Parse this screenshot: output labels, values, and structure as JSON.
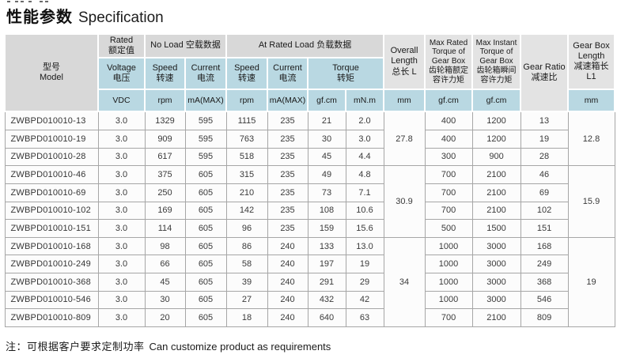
{
  "page": {
    "title_zh": "性能参数",
    "title_en": "Specification",
    "note_zh": "注：可根据客户要求定制功率",
    "note_en": "Can customize product as requirements"
  },
  "colors": {
    "header_gray": "#d8d8d8",
    "header_gray_light": "#e3e3e3",
    "header_blue": "#b9d8e2",
    "grid_line": "#a6a6a6",
    "cell_background": "#fcfcfc"
  },
  "table": {
    "header": {
      "model": "型号\nModel",
      "rated": "Rated\n额定值",
      "no_load": "No Load 空载数据",
      "at_rated_load": "At Rated Load 负载数据",
      "voltage": "Voltage\n电压",
      "speed": "Speed\n转速",
      "current": "Current\n电流",
      "torque": "Torque\n转矩",
      "overall_length": "Overall\nLength\n总长 L",
      "max_rated_torque": "Max Rated\nTorque of\nGear Box\n齿轮箱额定\n容许力矩",
      "max_instant_torque": "Max Instant\nTorque of\nGear Box\n齿轮箱瞬间\n容许力矩",
      "gear_ratio": "Gear Ratio\n减速比",
      "gear_box_length": "Gear Box\nLength\n减速箱长\nL1",
      "unit_vdc": "VDC",
      "unit_rpm": "rpm",
      "unit_ma": "mA(MAX)",
      "unit_gfcm": "gf.cm",
      "unit_mnm": "mN.m",
      "unit_mm": "mm"
    },
    "rows": [
      {
        "model": "ZWBPD010010-13",
        "voltage": "3.0",
        "no_load_speed": "1329",
        "no_load_current": "595",
        "rated_speed": "1115",
        "rated_current": "235",
        "torque_gfcm": "21",
        "torque_mnm": "2.0",
        "max_rated_torque": "400",
        "max_instant_torque": "1200",
        "gear_ratio": "13"
      },
      {
        "model": "ZWBPD010010-19",
        "voltage": "3.0",
        "no_load_speed": "909",
        "no_load_current": "595",
        "rated_speed": "763",
        "rated_current": "235",
        "torque_gfcm": "30",
        "torque_mnm": "3.0",
        "max_rated_torque": "400",
        "max_instant_torque": "1200",
        "gear_ratio": "19"
      },
      {
        "model": "ZWBPD010010-28",
        "voltage": "3.0",
        "no_load_speed": "617",
        "no_load_current": "595",
        "rated_speed": "518",
        "rated_current": "235",
        "torque_gfcm": "45",
        "torque_mnm": "4.4",
        "max_rated_torque": "300",
        "max_instant_torque": "900",
        "gear_ratio": "28"
      },
      {
        "model": "ZWBPD010010-46",
        "voltage": "3.0",
        "no_load_speed": "375",
        "no_load_current": "605",
        "rated_speed": "315",
        "rated_current": "235",
        "torque_gfcm": "49",
        "torque_mnm": "4.8",
        "max_rated_torque": "700",
        "max_instant_torque": "2100",
        "gear_ratio": "46"
      },
      {
        "model": "ZWBPD010010-69",
        "voltage": "3.0",
        "no_load_speed": "250",
        "no_load_current": "605",
        "rated_speed": "210",
        "rated_current": "235",
        "torque_gfcm": "73",
        "torque_mnm": "7.1",
        "max_rated_torque": "700",
        "max_instant_torque": "2100",
        "gear_ratio": "69"
      },
      {
        "model": "ZWBPD010010-102",
        "voltage": "3.0",
        "no_load_speed": "169",
        "no_load_current": "605",
        "rated_speed": "142",
        "rated_current": "235",
        "torque_gfcm": "108",
        "torque_mnm": "10.6",
        "max_rated_torque": "700",
        "max_instant_torque": "2100",
        "gear_ratio": "102"
      },
      {
        "model": "ZWBPD010010-151",
        "voltage": "3.0",
        "no_load_speed": "114",
        "no_load_current": "605",
        "rated_speed": "96",
        "rated_current": "235",
        "torque_gfcm": "159",
        "torque_mnm": "15.6",
        "max_rated_torque": "500",
        "max_instant_torque": "1500",
        "gear_ratio": "151"
      },
      {
        "model": "ZWBPD010010-168",
        "voltage": "3.0",
        "no_load_speed": "98",
        "no_load_current": "605",
        "rated_speed": "86",
        "rated_current": "240",
        "torque_gfcm": "133",
        "torque_mnm": "13.0",
        "max_rated_torque": "1000",
        "max_instant_torque": "3000",
        "gear_ratio": "168"
      },
      {
        "model": "ZWBPD010010-249",
        "voltage": "3.0",
        "no_load_speed": "66",
        "no_load_current": "605",
        "rated_speed": "58",
        "rated_current": "240",
        "torque_gfcm": "197",
        "torque_mnm": "19",
        "max_rated_torque": "1000",
        "max_instant_torque": "3000",
        "gear_ratio": "249"
      },
      {
        "model": "ZWBPD010010-368",
        "voltage": "3.0",
        "no_load_speed": "45",
        "no_load_current": "605",
        "rated_speed": "39",
        "rated_current": "240",
        "torque_gfcm": "291",
        "torque_mnm": "29",
        "max_rated_torque": "1000",
        "max_instant_torque": "3000",
        "gear_ratio": "368"
      },
      {
        "model": "ZWBPD010010-546",
        "voltage": "3.0",
        "no_load_speed": "30",
        "no_load_current": "605",
        "rated_speed": "27",
        "rated_current": "240",
        "torque_gfcm": "432",
        "torque_mnm": "42",
        "max_rated_torque": "1000",
        "max_instant_torque": "3000",
        "gear_ratio": "546"
      },
      {
        "model": "ZWBPD010010-809",
        "voltage": "3.0",
        "no_load_speed": "20",
        "no_load_current": "605",
        "rated_speed": "18",
        "rated_current": "240",
        "torque_gfcm": "640",
        "torque_mnm": "63",
        "max_rated_torque": "700",
        "max_instant_torque": "2100",
        "gear_ratio": "809"
      }
    ],
    "length_groups": [
      {
        "span": 3,
        "overall_length": "27.8",
        "gear_box_length": "12.8"
      },
      {
        "span": 4,
        "overall_length": "30.9",
        "gear_box_length": "15.9"
      },
      {
        "span": 5,
        "overall_length": "34",
        "gear_box_length": "19"
      }
    ]
  }
}
